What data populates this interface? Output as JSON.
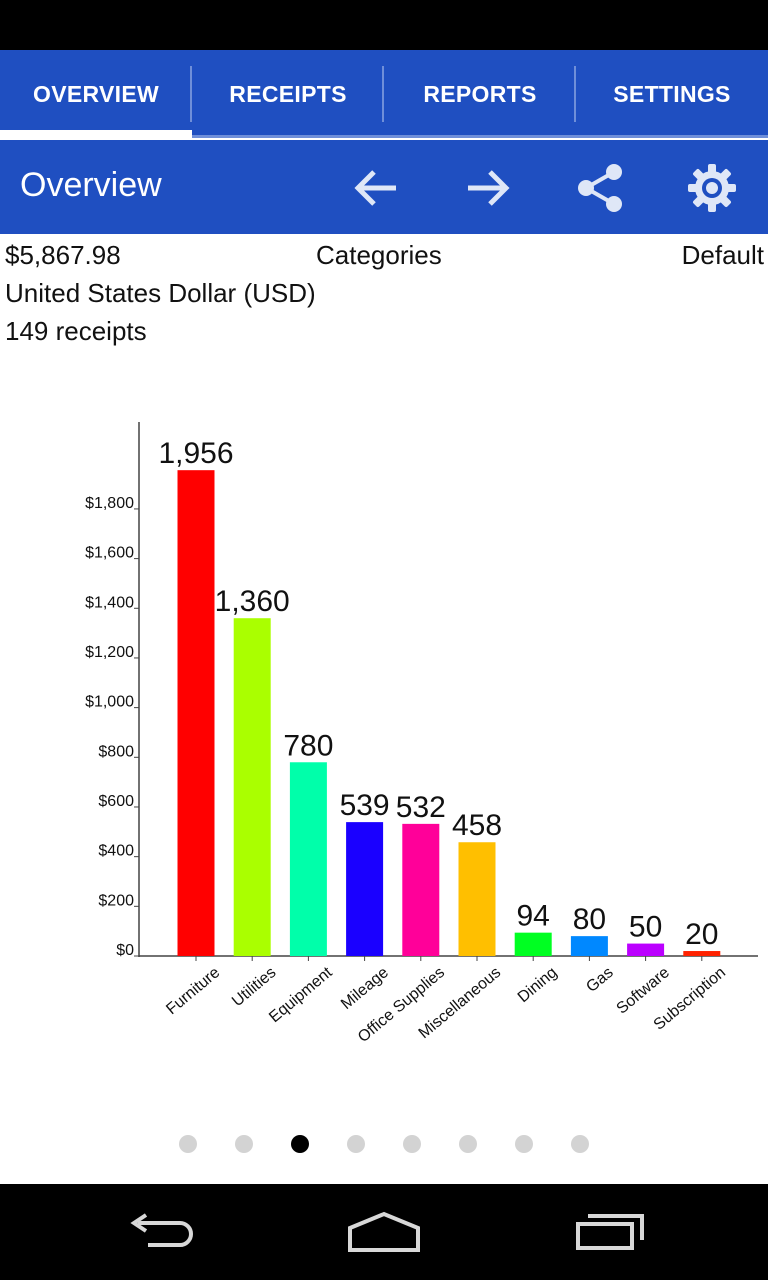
{
  "tabs": [
    {
      "label": "OVERVIEW",
      "active": true
    },
    {
      "label": "RECEIPTS",
      "active": false
    },
    {
      "label": "REPORTS",
      "active": false
    },
    {
      "label": "SETTINGS",
      "active": false
    }
  ],
  "action_bar": {
    "title": "Overview",
    "icons": [
      "arrow-back-icon",
      "arrow-forward-icon",
      "share-icon",
      "gear-icon"
    ]
  },
  "summary": {
    "total": "$5,867.98",
    "view": "Categories",
    "profile": "Default",
    "currency": "United States Dollar (USD)",
    "receipts": "149 receipts"
  },
  "colors": {
    "primary": "#1f4fc1",
    "bar_colors": [
      "#ff0000",
      "#aaff00",
      "#00ffaa",
      "#1a00ff",
      "#ff0099",
      "#ffbf00",
      "#00ff22",
      "#0088ff",
      "#bb00ff",
      "#ff2200"
    ]
  },
  "chart_data": {
    "type": "bar",
    "categories": [
      "Furniture",
      "Utilities",
      "Equipment",
      "Mileage",
      "Office Supplies",
      "Miscellaneous",
      "Dining",
      "Gas",
      "Software",
      "Subscription"
    ],
    "values": [
      1956,
      1360,
      780,
      539,
      532,
      458,
      94,
      80,
      50,
      20
    ],
    "value_labels": [
      "1,956",
      "1,360",
      "780",
      "539",
      "532",
      "458",
      "94",
      "80",
      "50",
      "20"
    ],
    "y_ticks": [
      0,
      200,
      400,
      600,
      800,
      1000,
      1200,
      1400,
      1600,
      1800
    ],
    "y_tick_labels": [
      "$0",
      "$200",
      "$400",
      "$600",
      "$800",
      "$1,000",
      "$1,200",
      "$1,400",
      "$1,600",
      "$1,800"
    ],
    "ylim": [
      0,
      2150
    ],
    "title": "",
    "xlabel": "",
    "ylabel": "",
    "grid": false,
    "legend": "none"
  },
  "pager": {
    "count": 8,
    "active_index": 2
  },
  "nav_bar": {
    "icons": [
      "back-icon",
      "home-icon",
      "recent-apps-icon"
    ]
  }
}
